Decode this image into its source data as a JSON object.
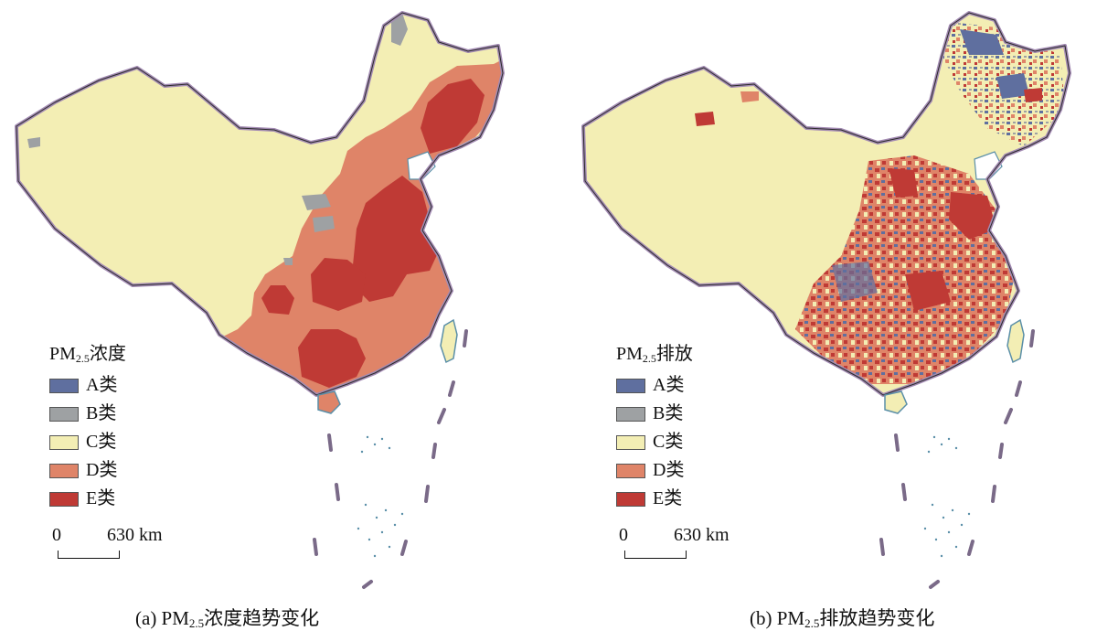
{
  "colors": {
    "A": "#5f6f9f",
    "B": "#9ea1a3",
    "C": "#f3eeb4",
    "D": "#df8468",
    "E": "#bf3a35",
    "border": "#a38bb3",
    "coast": "#5a8fa8"
  },
  "panels": [
    {
      "legend_title_pre": "PM",
      "legend_title_sub": "2.5",
      "legend_title_post": "浓度",
      "legend_items": [
        {
          "label": "A类",
          "color": "#5f6f9f"
        },
        {
          "label": "B类",
          "color": "#9ea1a3"
        },
        {
          "label": "C类",
          "color": "#f3eeb4"
        },
        {
          "label": "D类",
          "color": "#df8468"
        },
        {
          "label": "E类",
          "color": "#bf3a35"
        }
      ],
      "scale_zero": "0",
      "scale_distance": "630 km",
      "caption_pre": "(a) PM",
      "caption_sub": "2.5",
      "caption_post": "浓度趋势变化"
    },
    {
      "legend_title_pre": "PM",
      "legend_title_sub": "2.5",
      "legend_title_post": "排放",
      "legend_items": [
        {
          "label": "A类",
          "color": "#5f6f9f"
        },
        {
          "label": "B类",
          "color": "#9ea1a3"
        },
        {
          "label": "C类",
          "color": "#f3eeb4"
        },
        {
          "label": "D类",
          "color": "#df8468"
        },
        {
          "label": "E类",
          "color": "#bf3a35"
        }
      ],
      "scale_zero": "0",
      "scale_distance": "630 km",
      "caption_pre": "(b) PM",
      "caption_sub": "2.5",
      "caption_post": "排放趋势变化"
    }
  ]
}
